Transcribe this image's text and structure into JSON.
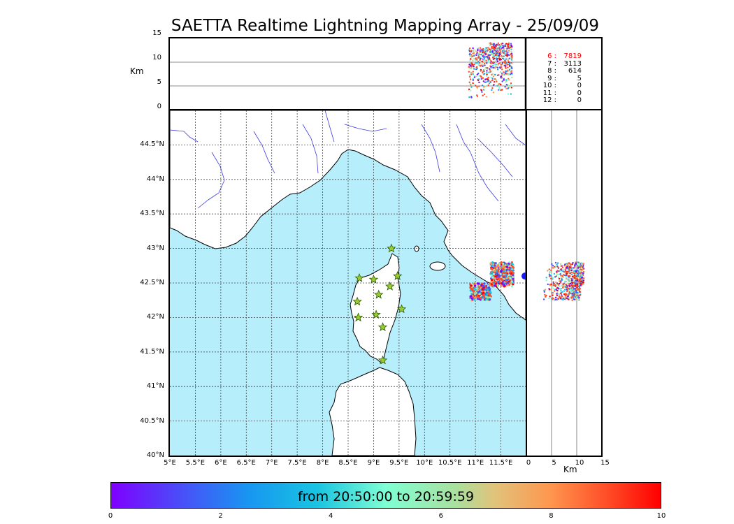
{
  "title": "SAETTA Realtime Lightning Mapping Array - 25/09/09",
  "alt_label": "Km",
  "alt_ticks": [
    "0",
    "5",
    "10",
    "15"
  ],
  "lat_ticks": [
    "40°N",
    "40.5°N",
    "41°N",
    "41.5°N",
    "42°N",
    "42.5°N",
    "43°N",
    "43.5°N",
    "44°N",
    "44.5°N"
  ],
  "lon_ticks": [
    "5°E",
    "5.5°E",
    "6°E",
    "6.5°E",
    "7°E",
    "7.5°E",
    "8°E",
    "8.5°E",
    "9°E",
    "9.5°E",
    "10°E",
    "10.5°E",
    "11°E",
    "11.5°E"
  ],
  "side_alt_ticks": [
    "0",
    "5",
    "10",
    "15"
  ],
  "side_xlabel": "Km",
  "station_counts": [
    {
      "stations": "6 :",
      "count": "7819",
      "color": "#ff0000"
    },
    {
      "stations": "7 :",
      "count": "3113",
      "color": "#000000"
    },
    {
      "stations": "8 :",
      "count": "614",
      "color": "#000000"
    },
    {
      "stations": "9 :",
      "count": "5",
      "color": "#000000"
    },
    {
      "stations": "10 :",
      "count": "0",
      "color": "#000000"
    },
    {
      "stations": "11 :",
      "count": "0",
      "color": "#000000"
    },
    {
      "stations": "12 :",
      "count": "0",
      "color": "#000000"
    }
  ],
  "colorbar": {
    "label": "from 20:50:00 to 20:59:59",
    "ticks": [
      "0",
      "2",
      "4",
      "6",
      "8",
      "10"
    ],
    "min": 0,
    "max": 10
  },
  "colors": {
    "sea": "#b7eefb",
    "land": "#ffffff",
    "river": "#3a3ae6",
    "station_star": "#9acd32"
  },
  "chart_data": {
    "type": "scatter",
    "xlim": [
      5,
      12
    ],
    "ylim": [
      40,
      45
    ],
    "alt_range_km": [
      0,
      15
    ],
    "stations": [
      {
        "lon": 9.35,
        "lat": 43.0
      },
      {
        "lon": 8.72,
        "lat": 42.57
      },
      {
        "lon": 9.0,
        "lat": 42.55
      },
      {
        "lon": 9.47,
        "lat": 42.6
      },
      {
        "lon": 9.32,
        "lat": 42.45
      },
      {
        "lon": 9.1,
        "lat": 42.33
      },
      {
        "lon": 8.68,
        "lat": 42.23
      },
      {
        "lon": 9.55,
        "lat": 42.12
      },
      {
        "lon": 9.05,
        "lat": 42.04
      },
      {
        "lon": 8.7,
        "lat": 42.0
      },
      {
        "lon": 9.18,
        "lat": 41.86
      },
      {
        "lon": 9.18,
        "lat": 41.38
      }
    ],
    "lightning_clusters": [
      {
        "lon_range": [
          10.9,
          11.3
        ],
        "lat_range": [
          42.25,
          42.5
        ],
        "alt_range_km": [
          2,
          13
        ]
      },
      {
        "lon_range": [
          11.3,
          11.75
        ],
        "lat_range": [
          42.45,
          42.8
        ],
        "alt_range_km": [
          3,
          14
        ]
      }
    ]
  }
}
